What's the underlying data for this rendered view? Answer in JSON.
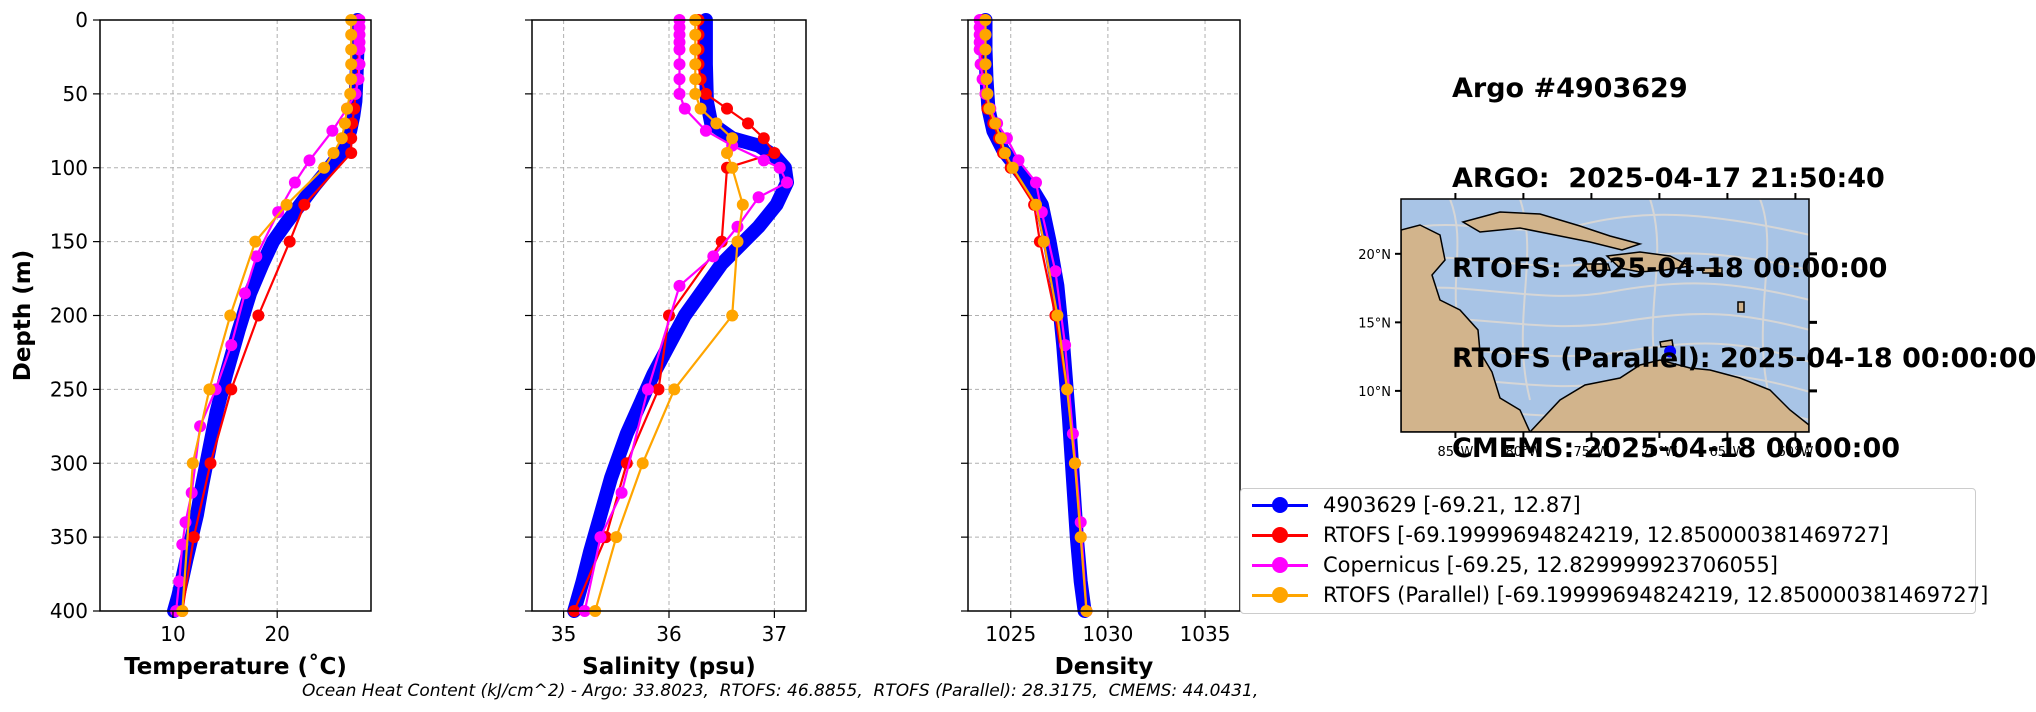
{
  "info": {
    "lines": [
      "Argo #4903629",
      "ARGO:  2025-04-17 21:50:40",
      "RTOFS: 2025-04-18 00:00:00",
      "RTOFS (Parallel): 2025-04-18 00:00:00",
      "CMEMS: 2025-04-18 00:00:00"
    ]
  },
  "footer": {
    "ohc_text": "Ocean Heat Content (kJ/cm^2) - Argo: 33.8023,  RTOFS: 46.8855,  RTOFS (Parallel): 28.3175,  CMEMS: 44.0431,"
  },
  "legend": {
    "entries": [
      {
        "label": "4903629 [-69.21, 12.87]",
        "color": "#0000ff"
      },
      {
        "label": "RTOFS [-69.19999694824219, 12.850000381469727]",
        "color": "#ff0000"
      },
      {
        "label": "Copernicus [-69.25, 12.829999923706055]",
        "color": "#ff00ff"
      },
      {
        "label": "RTOFS (Parallel) [-69.19999694824219, 12.850000381469727]",
        "color": "#ffa500"
      }
    ]
  },
  "chart_data": [
    {
      "type": "line",
      "xlabel": "Temperature (˚C)",
      "ylabel": "Depth (m)",
      "xlim": [
        3,
        29
      ],
      "ylim": [
        400,
        0
      ],
      "xticks": [
        10,
        20
      ],
      "yticks": [
        0,
        50,
        100,
        150,
        200,
        250,
        300,
        350,
        400
      ],
      "grid": true,
      "series": [
        {
          "name": "4903629",
          "color": "#0000ff",
          "marker": "dense",
          "x": [
            27.7,
            27.7,
            27.6,
            27.5,
            27.3,
            27.0,
            26.3,
            25.0,
            23.6,
            22.2,
            20.8,
            19.6,
            18.6,
            17.4,
            16.3,
            15.1,
            14.2,
            13.5,
            12.8,
            12.3,
            11.8,
            11.3,
            10.9,
            10.5,
            10.1
          ],
          "y": [
            0,
            20,
            40,
            55,
            65,
            75,
            88,
            100,
            112,
            125,
            138,
            150,
            165,
            185,
            210,
            240,
            265,
            290,
            315,
            335,
            350,
            365,
            378,
            390,
            400
          ]
        },
        {
          "name": "RTOFS",
          "color": "#ff0000",
          "x": [
            27.8,
            27.8,
            27.8,
            27.8,
            27.7,
            27.5,
            27.4,
            27.2,
            27.1,
            27.1,
            22.6,
            21.2,
            18.2,
            15.6,
            13.6,
            12.0,
            10.9
          ],
          "y": [
            0,
            10,
            20,
            30,
            40,
            50,
            60,
            70,
            80,
            90,
            125,
            150,
            200,
            250,
            300,
            350,
            400
          ]
        },
        {
          "name": "Copernicus",
          "color": "#ff00ff",
          "x": [
            27.9,
            27.9,
            27.9,
            27.9,
            27.9,
            27.9,
            27.8,
            27.5,
            26.7,
            25.3,
            23.1,
            21.7,
            20.1,
            18.0,
            16.9,
            15.6,
            14.1,
            12.6,
            11.8,
            11.2,
            10.9,
            10.6,
            10.3
          ],
          "y": [
            0,
            5,
            10,
            15,
            20,
            30,
            40,
            50,
            60,
            75,
            95,
            110,
            130,
            160,
            185,
            220,
            250,
            275,
            320,
            340,
            355,
            380,
            400
          ]
        },
        {
          "name": "RTOFS (Parallel)",
          "color": "#ffa500",
          "x": [
            27.1,
            27.1,
            27.1,
            27.1,
            27.1,
            27.0,
            26.7,
            26.5,
            26.2,
            25.4,
            24.5,
            20.9,
            17.9,
            15.5,
            13.5,
            11.9,
            10.9
          ],
          "y": [
            0,
            10,
            20,
            30,
            40,
            50,
            60,
            70,
            80,
            90,
            100,
            125,
            150,
            200,
            250,
            300,
            400
          ]
        }
      ]
    },
    {
      "type": "line",
      "xlabel": "Salinity (psu)",
      "ylabel": "",
      "xlim": [
        34.7,
        37.3
      ],
      "ylim": [
        400,
        0
      ],
      "xticks": [
        35,
        36,
        37
      ],
      "yticks": [
        0,
        50,
        100,
        150,
        200,
        250,
        300,
        350,
        400
      ],
      "grid": true,
      "series": [
        {
          "name": "4903629",
          "color": "#0000ff",
          "marker": "dense",
          "x": [
            36.35,
            36.35,
            36.36,
            36.4,
            36.6,
            36.85,
            37.0,
            37.1,
            37.12,
            37.02,
            36.85,
            36.5,
            36.15,
            35.85,
            35.6,
            35.45,
            35.35,
            35.25,
            35.18,
            35.1
          ],
          "y": [
            0,
            30,
            55,
            70,
            80,
            85,
            92,
            100,
            110,
            125,
            140,
            165,
            200,
            240,
            280,
            310,
            335,
            360,
            380,
            400
          ]
        },
        {
          "name": "RTOFS",
          "color": "#ff0000",
          "x": [
            36.28,
            36.28,
            36.28,
            36.28,
            36.3,
            36.35,
            36.55,
            36.75,
            36.9,
            37.0,
            36.55,
            36.5,
            36.0,
            35.9,
            35.6,
            35.4,
            35.1
          ],
          "y": [
            0,
            10,
            20,
            30,
            40,
            50,
            60,
            70,
            80,
            90,
            100,
            150,
            200,
            250,
            300,
            350,
            400
          ]
        },
        {
          "name": "Copernicus",
          "color": "#ff00ff",
          "x": [
            36.1,
            36.1,
            36.1,
            36.1,
            36.1,
            36.1,
            36.1,
            36.1,
            36.15,
            36.35,
            36.6,
            36.9,
            37.05,
            37.12,
            36.85,
            36.65,
            36.42,
            36.1,
            35.8,
            35.55,
            35.35,
            35.2
          ],
          "y": [
            0,
            5,
            10,
            15,
            20,
            30,
            40,
            50,
            60,
            75,
            85,
            95,
            100,
            110,
            120,
            140,
            160,
            180,
            250,
            320,
            350,
            400
          ]
        },
        {
          "name": "RTOFS (Parallel)",
          "color": "#ffa500",
          "x": [
            36.25,
            36.25,
            36.25,
            36.25,
            36.25,
            36.25,
            36.3,
            36.45,
            36.6,
            36.55,
            36.6,
            36.7,
            36.65,
            36.6,
            36.05,
            35.75,
            35.5,
            35.3
          ],
          "y": [
            0,
            10,
            20,
            30,
            40,
            50,
            60,
            70,
            80,
            90,
            100,
            125,
            150,
            200,
            250,
            300,
            350,
            400
          ]
        }
      ]
    },
    {
      "type": "line",
      "xlabel": "Density",
      "ylabel": "",
      "xlim": [
        1022.8,
        1036.8
      ],
      "ylim": [
        400,
        0
      ],
      "xticks": [
        1025,
        1030,
        1035
      ],
      "yticks": [
        0,
        50,
        100,
        150,
        200,
        250,
        300,
        350,
        400
      ],
      "grid": true,
      "series": [
        {
          "name": "4903629",
          "color": "#0000ff",
          "marker": "dense",
          "x": [
            1023.7,
            1023.7,
            1023.75,
            1023.85,
            1024.1,
            1024.6,
            1025.3,
            1026.0,
            1026.6,
            1027.0,
            1027.4,
            1027.7,
            1028.0,
            1028.2,
            1028.4,
            1028.6,
            1028.8
          ],
          "y": [
            0,
            20,
            40,
            60,
            75,
            88,
            100,
            112,
            125,
            150,
            180,
            220,
            270,
            310,
            350,
            380,
            400
          ]
        },
        {
          "name": "RTOFS",
          "color": "#ff0000",
          "x": [
            1023.5,
            1023.5,
            1023.5,
            1023.5,
            1023.6,
            1023.7,
            1023.8,
            1024.1,
            1024.4,
            1024.6,
            1025.0,
            1026.2,
            1026.5,
            1027.3,
            1027.9,
            1028.3,
            1028.6,
            1028.9
          ],
          "y": [
            0,
            10,
            20,
            30,
            40,
            50,
            60,
            70,
            80,
            90,
            100,
            125,
            150,
            200,
            250,
            300,
            350,
            400
          ]
        },
        {
          "name": "Copernicus",
          "color": "#ff00ff",
          "x": [
            1023.4,
            1023.4,
            1023.4,
            1023.4,
            1023.4,
            1023.45,
            1023.55,
            1023.7,
            1023.95,
            1024.3,
            1024.8,
            1025.4,
            1026.3,
            1026.6,
            1027.3,
            1027.8,
            1028.2,
            1028.6,
            1028.9
          ],
          "y": [
            0,
            5,
            10,
            15,
            20,
            30,
            40,
            50,
            60,
            70,
            80,
            95,
            110,
            130,
            170,
            220,
            280,
            340,
            400
          ]
        },
        {
          "name": "RTOFS (Parallel)",
          "color": "#ffa500",
          "x": [
            1023.7,
            1023.7,
            1023.7,
            1023.7,
            1023.75,
            1023.8,
            1023.9,
            1024.2,
            1024.5,
            1024.7,
            1025.1,
            1026.3,
            1026.7,
            1027.4,
            1027.9,
            1028.3,
            1028.6,
            1028.9
          ],
          "y": [
            0,
            10,
            20,
            30,
            40,
            50,
            60,
            70,
            80,
            90,
            100,
            125,
            150,
            200,
            250,
            300,
            350,
            400
          ]
        }
      ]
    }
  ],
  "map": {
    "lon_ticks": [
      "85°W",
      "80°W",
      "75°W",
      "70°W",
      "65°W",
      "60°W"
    ],
    "lat_ticks": [
      "20°N",
      "15°N",
      "10°N"
    ],
    "lon_range": [
      -89,
      -59
    ],
    "lat_range": [
      7,
      24
    ],
    "float_position": {
      "lon": -69.21,
      "lat": 12.87
    },
    "colors": {
      "ocean": "#a8c4e6",
      "land": "#d2b48c",
      "streamline": "#d6d6d6",
      "float": "#0000ff"
    }
  }
}
